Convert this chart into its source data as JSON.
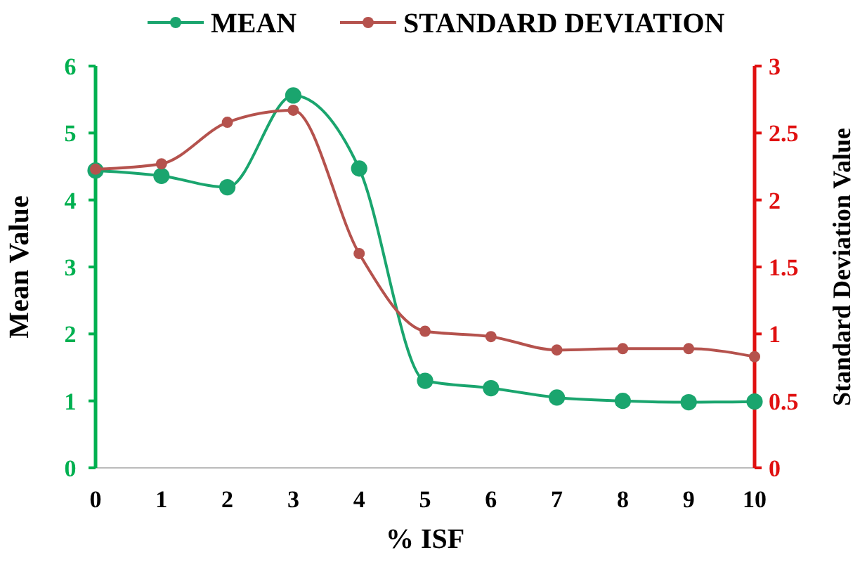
{
  "chart_data": {
    "type": "line",
    "xlabel": "% ISF",
    "ylabel": "Mean Value",
    "y2label": "Standard Deviation Value",
    "x": [
      0,
      1,
      2,
      3,
      4,
      5,
      6,
      7,
      8,
      9,
      10
    ],
    "series": [
      {
        "name": "MEAN",
        "color": "#1aa56e",
        "values": [
          4.44,
          4.36,
          4.19,
          5.56,
          4.47,
          1.3,
          1.19,
          1.05,
          1.0,
          0.98,
          0.99
        ]
      },
      {
        "name": "STANDARD DEVIATION",
        "color": "#b5524d",
        "axis": "y2",
        "values": [
          2.23,
          2.27,
          2.58,
          2.67,
          1.6,
          1.02,
          0.98,
          0.88,
          0.89,
          0.89,
          0.83
        ]
      }
    ],
    "xlim": [
      0,
      10
    ],
    "xticks": [
      0,
      1,
      2,
      3,
      4,
      5,
      6,
      7,
      8,
      9,
      10
    ],
    "ylim": [
      0,
      6
    ],
    "yticks": [
      0,
      1,
      2,
      3,
      4,
      5,
      6
    ],
    "y2lim": [
      0,
      3
    ],
    "y2ticks": [
      0,
      0.5,
      1,
      1.5,
      2,
      2.5,
      3
    ],
    "marker": "circle",
    "line_style": "solid",
    "legend": "top",
    "grid": false
  }
}
